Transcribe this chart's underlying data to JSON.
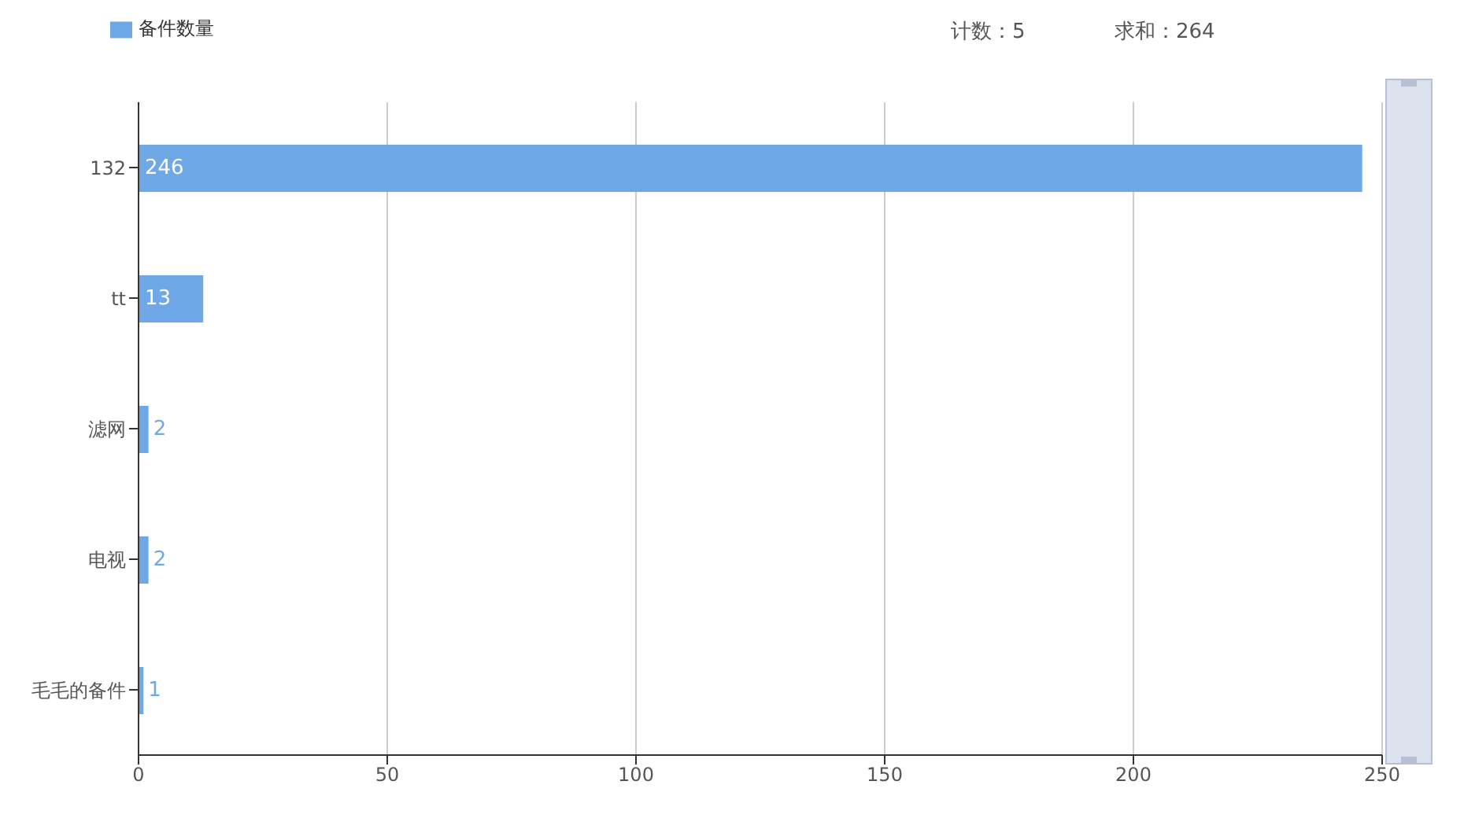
{
  "chart_data": {
    "type": "bar",
    "orientation": "horizontal",
    "categories": [
      "132",
      "tt",
      "滤网",
      "电视",
      "毛毛的备件"
    ],
    "series": [
      {
        "name": "备件数量",
        "color": "#6fa8e6",
        "values": [
          246,
          13,
          2,
          2,
          1
        ]
      }
    ],
    "xlim": [
      0,
      250
    ],
    "xticks": [
      0,
      50,
      100,
      150,
      200,
      250
    ],
    "grid": "x",
    "legend": "top left",
    "data_labels": true,
    "annotations": [
      "计数：5",
      "求和：264"
    ]
  }
}
